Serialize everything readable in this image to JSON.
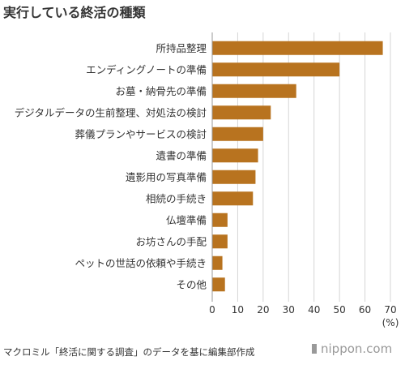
{
  "title": "実行している終活の種類",
  "source": "マクロミル「終活に関する調査」のデータを基に編集部作成",
  "brand": "nippon.com",
  "colors": {
    "bar": "#B8731F",
    "axis": "#999999",
    "grid": "#d6d6d6",
    "text": "#333333"
  },
  "chart_data": {
    "type": "bar",
    "orientation": "horizontal",
    "title": "実行している終活の種類",
    "unit_label": "(%)",
    "categories": [
      "所持品整理",
      "エンディングノートの準備",
      "お墓・納骨先の準備",
      "デジタルデータの生前整理、対処法の検討",
      "葬儀プランやサービスの検討",
      "遺書の準備",
      "遺影用の写真準備",
      "相続の手続き",
      "仏壇準備",
      "お坊さんの手配",
      "ペットの世話の依頼や手続き",
      "その他"
    ],
    "values": [
      67,
      50,
      33,
      23,
      20,
      18,
      17,
      16,
      6,
      6,
      4,
      5
    ],
    "xlim": [
      0,
      70
    ],
    "xticks": [
      0,
      10,
      20,
      30,
      40,
      50,
      60,
      70
    ],
    "grid": true
  }
}
